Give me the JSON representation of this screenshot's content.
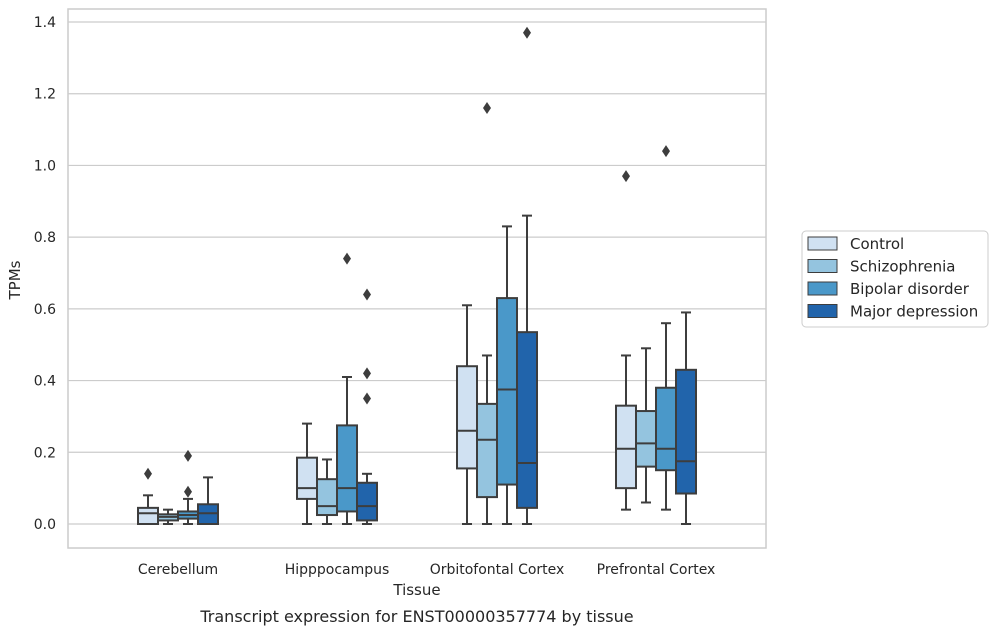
{
  "chart_data": {
    "type": "boxplot",
    "caption": "Transcript expression for ENST00000357774 by tissue",
    "xlabel": "Tissue",
    "ylabel": "TPMs",
    "ylim": [
      -0.065,
      1.44
    ],
    "yticks": [
      "0.0",
      "0.2",
      "0.4",
      "0.6",
      "0.8",
      "1.0",
      "1.2",
      "1.4"
    ],
    "grid": true,
    "legend_position": "right",
    "categories": [
      "Cerebellum",
      "Hipppocampus",
      "Orbitofontal Cortex",
      "Prefrontal Cortex"
    ],
    "series": [
      {
        "name": "Control",
        "color": "#d0e1f2",
        "boxes": [
          {
            "whislo": 0.0,
            "q1": 0.0,
            "med": 0.03,
            "q3": 0.045,
            "whishi": 0.08,
            "fliers": [
              0.14
            ]
          },
          {
            "whislo": 0.0,
            "q1": 0.07,
            "med": 0.1,
            "q3": 0.185,
            "whishi": 0.28,
            "fliers": []
          },
          {
            "whislo": 0.0,
            "q1": 0.155,
            "med": 0.26,
            "q3": 0.44,
            "whishi": 0.61,
            "fliers": []
          },
          {
            "whislo": 0.04,
            "q1": 0.1,
            "med": 0.21,
            "q3": 0.33,
            "whishi": 0.47,
            "fliers": [
              0.97
            ]
          }
        ]
      },
      {
        "name": "Schizophrenia",
        "color": "#94c4df",
        "boxes": [
          {
            "whislo": 0.0,
            "q1": 0.01,
            "med": 0.02,
            "q3": 0.027,
            "whishi": 0.04,
            "fliers": []
          },
          {
            "whislo": 0.0,
            "q1": 0.025,
            "med": 0.05,
            "q3": 0.125,
            "whishi": 0.18,
            "fliers": []
          },
          {
            "whislo": 0.0,
            "q1": 0.075,
            "med": 0.235,
            "q3": 0.335,
            "whishi": 0.47,
            "fliers": [
              1.16
            ]
          },
          {
            "whislo": 0.06,
            "q1": 0.16,
            "med": 0.225,
            "q3": 0.315,
            "whishi": 0.49,
            "fliers": []
          }
        ]
      },
      {
        "name": "Bipolar disorder",
        "color": "#4a98c9",
        "boxes": [
          {
            "whislo": 0.0,
            "q1": 0.015,
            "med": 0.025,
            "q3": 0.035,
            "whishi": 0.07,
            "fliers": [
              0.09,
              0.19
            ]
          },
          {
            "whislo": 0.0,
            "q1": 0.035,
            "med": 0.1,
            "q3": 0.275,
            "whishi": 0.41,
            "fliers": [
              0.74
            ]
          },
          {
            "whislo": 0.0,
            "q1": 0.11,
            "med": 0.375,
            "q3": 0.63,
            "whishi": 0.83,
            "fliers": []
          },
          {
            "whislo": 0.04,
            "q1": 0.15,
            "med": 0.21,
            "q3": 0.38,
            "whishi": 0.56,
            "fliers": [
              1.04
            ]
          }
        ]
      },
      {
        "name": "Major depression",
        "color": "#2164ab",
        "boxes": [
          {
            "whislo": 0.0,
            "q1": 0.0,
            "med": 0.03,
            "q3": 0.055,
            "whishi": 0.13,
            "fliers": []
          },
          {
            "whislo": 0.0,
            "q1": 0.01,
            "med": 0.05,
            "q3": 0.115,
            "whishi": 0.14,
            "fliers": [
              0.35,
              0.42,
              0.64
            ]
          },
          {
            "whislo": 0.0,
            "q1": 0.045,
            "med": 0.17,
            "q3": 0.535,
            "whishi": 0.86,
            "fliers": [
              1.37
            ]
          },
          {
            "whislo": 0.0,
            "q1": 0.085,
            "med": 0.175,
            "q3": 0.43,
            "whishi": 0.59,
            "fliers": []
          }
        ]
      }
    ]
  }
}
